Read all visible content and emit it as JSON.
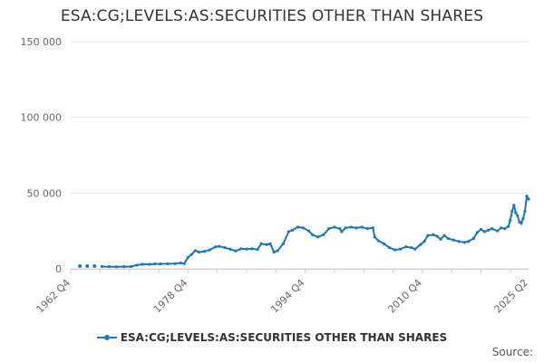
{
  "title": "ESA:CG;LEVELS:AS:SECURITIES OTHER THAN SHARES",
  "source_label": "Source:",
  "series_color": "#1f78b4",
  "chart_data": {
    "type": "line",
    "title": "ESA:CG;LEVELS:AS:SECURITIES OTHER THAN SHARES",
    "xlabel": "",
    "ylabel": "",
    "xlim": [
      1962.75,
      2025.25
    ],
    "ylim": [
      0,
      150000
    ],
    "y_ticks": [
      0,
      50000,
      100000,
      150000
    ],
    "y_tick_labels": [
      "0",
      "50 000",
      "100 000",
      "150 000"
    ],
    "x_ticks": [
      1962.75,
      1978.75,
      1994.75,
      2010.75,
      2025.25
    ],
    "x_tick_labels": [
      "1962 Q4",
      "1978 Q4",
      "1994 Q4",
      "2010 Q4",
      "2025 Q2"
    ],
    "grid": "horizontal",
    "legend_position": "bottom",
    "series": [
      {
        "name": "ESA:CG;LEVELS:AS:SECURITIES OTHER THAN SHARES",
        "isolated_points": [
          [
            1964.0,
            1800
          ],
          [
            1965.0,
            1800
          ],
          [
            1966.0,
            1800
          ]
        ],
        "points": [
          [
            1967.0,
            1500
          ],
          [
            1968.0,
            1400
          ],
          [
            1969.0,
            1300
          ],
          [
            1970.0,
            1400
          ],
          [
            1971.0,
            1500
          ],
          [
            1971.75,
            2400
          ],
          [
            1972.5,
            3000
          ],
          [
            1973.5,
            2900
          ],
          [
            1974.25,
            3200
          ],
          [
            1975.0,
            3200
          ],
          [
            1976.0,
            3300
          ],
          [
            1977.0,
            3400
          ],
          [
            1977.75,
            3800
          ],
          [
            1978.25,
            3400
          ],
          [
            1978.75,
            7500
          ],
          [
            1979.25,
            9500
          ],
          [
            1979.75,
            12000
          ],
          [
            1980.25,
            11000
          ],
          [
            1981.0,
            11500
          ],
          [
            1981.75,
            12500
          ],
          [
            1982.5,
            14500
          ],
          [
            1983.0,
            14800
          ],
          [
            1983.75,
            14000
          ],
          [
            1984.5,
            13000
          ],
          [
            1985.25,
            11800
          ],
          [
            1986.0,
            13200
          ],
          [
            1986.75,
            13000
          ],
          [
            1987.5,
            13200
          ],
          [
            1988.25,
            12800
          ],
          [
            1988.75,
            16500
          ],
          [
            1989.5,
            16000
          ],
          [
            1990.0,
            16500
          ],
          [
            1990.5,
            11000
          ],
          [
            1991.0,
            12000
          ],
          [
            1991.75,
            16500
          ],
          [
            1992.5,
            24500
          ],
          [
            1993.0,
            25500
          ],
          [
            1993.75,
            27500
          ],
          [
            1994.5,
            27000
          ],
          [
            1995.25,
            25000
          ],
          [
            1995.75,
            22500
          ],
          [
            1996.5,
            21000
          ],
          [
            1997.25,
            22500
          ],
          [
            1998.0,
            26500
          ],
          [
            1998.75,
            27500
          ],
          [
            1999.5,
            26500
          ],
          [
            1999.75,
            24500
          ],
          [
            2000.25,
            27000
          ],
          [
            2001.0,
            27500
          ],
          [
            2001.75,
            27000
          ],
          [
            2002.5,
            27500
          ],
          [
            2003.25,
            26500
          ],
          [
            2004.0,
            27000
          ],
          [
            2004.25,
            21000
          ],
          [
            2004.75,
            18500
          ],
          [
            2005.5,
            16500
          ],
          [
            2006.25,
            14000
          ],
          [
            2007.0,
            12500
          ],
          [
            2007.75,
            13000
          ],
          [
            2008.5,
            14500
          ],
          [
            2009.25,
            14000
          ],
          [
            2009.75,
            13000
          ],
          [
            2010.5,
            16000
          ],
          [
            2011.0,
            18000
          ],
          [
            2011.5,
            22000
          ],
          [
            2012.25,
            22500
          ],
          [
            2012.75,
            21500
          ],
          [
            2013.25,
            19500
          ],
          [
            2013.75,
            22000
          ],
          [
            2014.25,
            20000
          ],
          [
            2015.0,
            19000
          ],
          [
            2015.75,
            18000
          ],
          [
            2016.5,
            17500
          ],
          [
            2017.0,
            18000
          ],
          [
            2017.75,
            20000
          ],
          [
            2018.25,
            24000
          ],
          [
            2018.75,
            26000
          ],
          [
            2019.25,
            24500
          ],
          [
            2019.75,
            25500
          ],
          [
            2020.25,
            26500
          ],
          [
            2021.0,
            25000
          ],
          [
            2021.5,
            27000
          ],
          [
            2022.0,
            26500
          ],
          [
            2022.5,
            28000
          ],
          [
            2022.75,
            32000
          ],
          [
            2023.0,
            38000
          ],
          [
            2023.25,
            42000
          ],
          [
            2023.5,
            37000
          ],
          [
            2023.75,
            35000
          ],
          [
            2024.0,
            31000
          ],
          [
            2024.25,
            30000
          ],
          [
            2024.5,
            33000
          ],
          [
            2024.75,
            38000
          ],
          [
            2025.0,
            48000
          ],
          [
            2025.25,
            46000
          ]
        ]
      }
    ]
  }
}
